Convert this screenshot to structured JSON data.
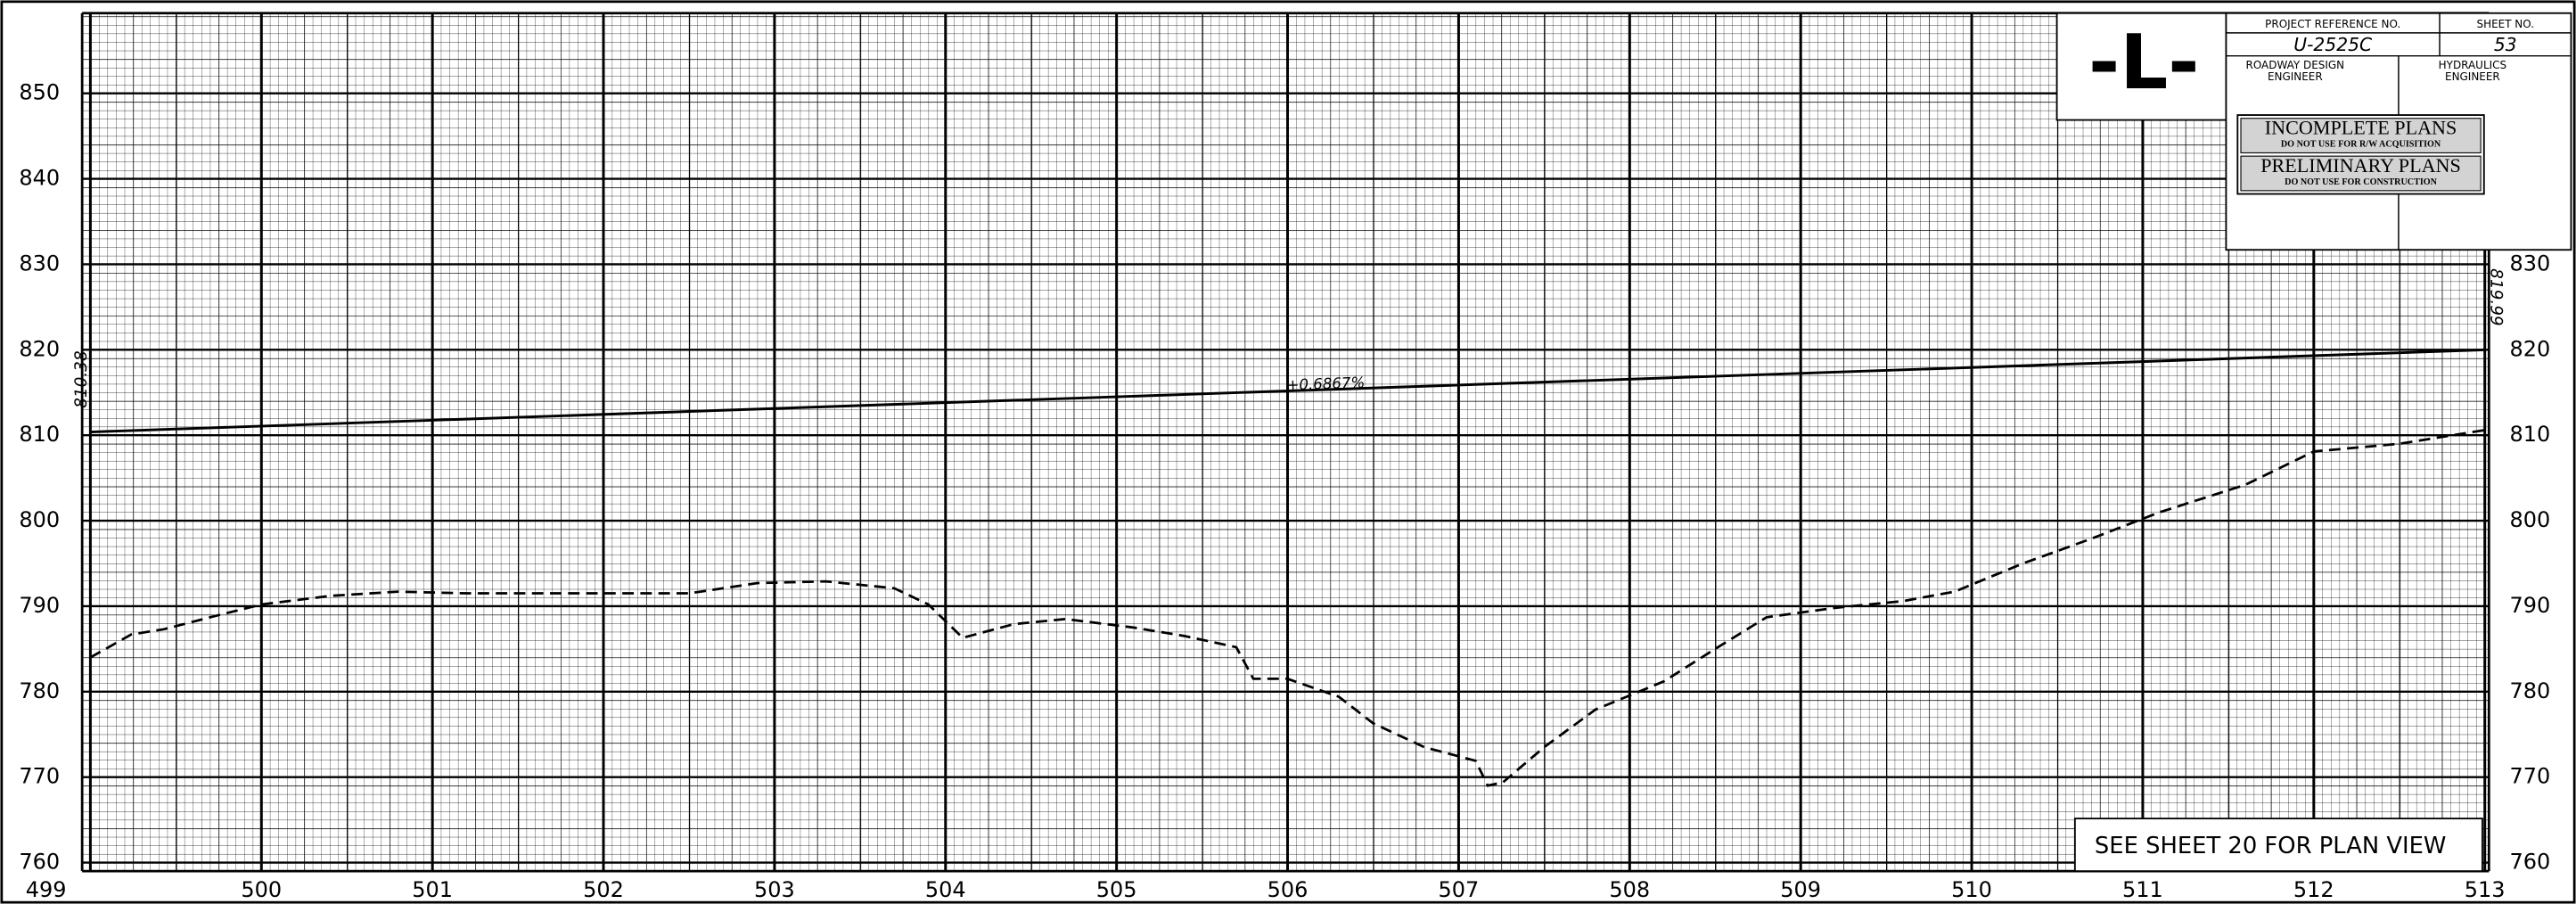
{
  "chart_data": {
    "type": "line",
    "xlim": [
      499,
      513
    ],
    "ylim": [
      759,
      859
    ],
    "xticks": [
      499,
      500,
      501,
      502,
      503,
      504,
      505,
      506,
      507,
      508,
      509,
      510,
      511,
      512,
      513
    ],
    "yticks": [
      760,
      770,
      780,
      790,
      800,
      810,
      820,
      830,
      840,
      850
    ],
    "grid": true,
    "grade_label": "+0.6867%",
    "series": [
      {
        "x": [
          499,
          513
        ],
        "values": [
          810.38,
          819.99
        ],
        "color": "#000000",
        "dashed": false
      },
      {
        "x": [
          499.0,
          499.24,
          499.43,
          499.72,
          500.0,
          500.4,
          500.8,
          501.2,
          501.6,
          502.1,
          502.5,
          502.9,
          503.3,
          503.7,
          503.9,
          504.1,
          504.4,
          504.7,
          505.1,
          505.4,
          505.7,
          505.8,
          506.0,
          506.3,
          506.5,
          506.8,
          507.1,
          507.17,
          507.26,
          507.5,
          507.8,
          508.2,
          508.5,
          508.8,
          509.2,
          509.6,
          509.9,
          510.3,
          510.7,
          511.1,
          511.6,
          512.0,
          512.5,
          513.0
        ],
        "values": [
          784.0,
          786.7,
          787.3,
          788.8,
          790.2,
          791.2,
          791.7,
          791.5,
          791.5,
          791.5,
          791.5,
          792.7,
          792.9,
          792.1,
          790.2,
          786.3,
          787.9,
          788.5,
          787.5,
          786.5,
          785.2,
          781.5,
          781.5,
          779.4,
          776.3,
          773.5,
          771.9,
          769.0,
          769.4,
          773.5,
          777.9,
          781.2,
          785.0,
          788.7,
          789.8,
          790.6,
          791.7,
          795.0,
          797.9,
          801.0,
          804.2,
          808.1,
          809.0,
          810.6
        ],
        "color": "#000000",
        "dashed": true
      }
    ]
  },
  "title_block": {
    "alignment": "-L-",
    "project_reference_label": "PROJECT REFERENCE NO.",
    "sheet_label": "SHEET NO.",
    "project_reference": "U-2525C",
    "sheet": "53",
    "roadway": [
      "ROADWAY DESIGN",
      "ENGINEER"
    ],
    "hydraulics": [
      "HYDRAULICS",
      "ENGINEER"
    ],
    "stamp1": "INCOMPLETE PLANS",
    "stamp1_note": "DO NOT USE FOR R/W ACQUISITION",
    "stamp2": "PRELIMINARY PLANS",
    "stamp2_note": "DO NOT USE FOR CONSTRUCTION"
  },
  "note": "SEE SHEET 20 FOR PLAN VIEW"
}
